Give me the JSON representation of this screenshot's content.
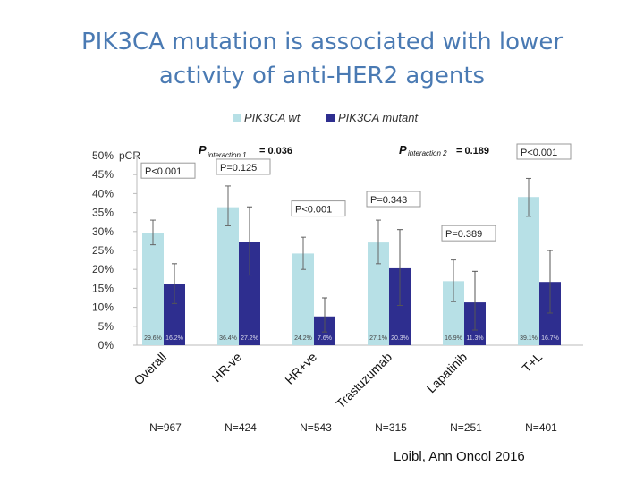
{
  "slide": {
    "title_line1": "PIK3CA mutation is associated with lower",
    "title_line2": "activity of anti-HER2 agents",
    "title_color": "#4a7ab3",
    "citation": "Loibl, Ann Oncol 2016"
  },
  "chart_data": {
    "type": "bar",
    "categories": [
      "Overall",
      "HR-ve",
      "HR+ve",
      "Trastuzumab",
      "Lapatinib",
      "T+L"
    ],
    "series": [
      {
        "name": "PIK3CA wt",
        "color": "#b7e0e6",
        "values": [
          29.6,
          36.4,
          24.2,
          27.1,
          16.9,
          39.1
        ],
        "value_labels": [
          "29.6%",
          "36.4%",
          "24.2%",
          "27.1%",
          "16.9%",
          "39.1%"
        ],
        "ci_low": [
          26.5,
          31.5,
          20,
          21.5,
          11.5,
          34
        ],
        "ci_high": [
          33,
          42,
          28.5,
          33,
          22.5,
          44
        ]
      },
      {
        "name": "PIK3CA mutant",
        "color": "#2e2e8f",
        "values": [
          16.2,
          27.2,
          7.6,
          20.3,
          11.3,
          16.7
        ],
        "value_labels": [
          "16.2%",
          "27.2%",
          "7.6%",
          "20.3%",
          "11.3%",
          "16.7%"
        ],
        "ci_low": [
          11,
          18.5,
          3.5,
          10.5,
          4,
          8.5
        ],
        "ci_high": [
          21.5,
          36.5,
          12.5,
          30.5,
          19.5,
          25
        ]
      }
    ],
    "n_labels": [
      "N=967",
      "N=424",
      "N=543",
      "N=315",
      "N=251",
      "N=401"
    ],
    "ylabel": "pCR",
    "ylim": [
      0,
      50
    ],
    "yticks": [
      0,
      5,
      10,
      15,
      20,
      25,
      30,
      35,
      40,
      45,
      50
    ],
    "ytick_labels": [
      "0%",
      "5%",
      "10%",
      "15%",
      "20%",
      "25%",
      "30%",
      "35%",
      "40%",
      "45%",
      "50%"
    ],
    "p_values": [
      {
        "text": "P<0.001",
        "group": 0,
        "level": 45
      },
      {
        "text": "P=0.125",
        "group": 1,
        "level": 46
      },
      {
        "text": "P<0.001",
        "group": 2,
        "level": 35
      },
      {
        "text": "P=0.343",
        "group": 3,
        "level": 37.5
      },
      {
        "text": "P=0.389",
        "group": 4,
        "level": 28.5
      },
      {
        "text": "P<0.001",
        "group": 5,
        "level": 50
      }
    ],
    "interactions": [
      {
        "p": "P",
        "sub": "interaction 1",
        "value": "= 0.036"
      },
      {
        "p": "P",
        "sub": "interaction 2",
        "value": "= 0.189"
      }
    ],
    "legend_position": "top"
  }
}
